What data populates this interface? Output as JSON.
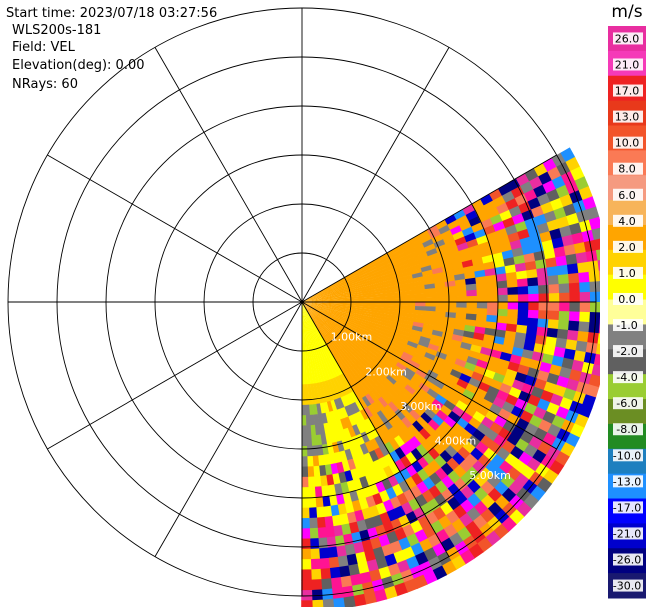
{
  "header": {
    "start_time": "Start time: 2023/07/18 03:27:56",
    "instrument": "WLS200s-181",
    "field": "Field: VEL",
    "elevation": "Elevation(deg): 0.00",
    "nrays": "NRays: 60"
  },
  "chart_data": {
    "type": "ppi",
    "range_ring_labels": [
      "1.00km",
      "2.00km",
      "3.00km",
      "4.00km",
      "5.00km"
    ],
    "range_ring_km": [
      1,
      2,
      3,
      4,
      5
    ],
    "max_ring_km": 6,
    "sector_azimuth_deg": [
      60,
      180
    ],
    "radial_lines_deg": [
      0,
      30,
      60,
      90,
      120,
      150,
      180,
      210,
      240,
      270,
      300,
      330
    ],
    "colorbar": {
      "unit": "m/s",
      "ticks": [
        "26.0",
        "21.0",
        "17.0",
        "13.0",
        "10.0",
        "8.0",
        "6.0",
        "4.0",
        "2.0",
        "1.0",
        "0.0",
        "-1.0",
        "-2.0",
        "-4.0",
        "-6.0",
        "-8.0",
        "-10.0",
        "-13.0",
        "-17.0",
        "-21.0",
        "-26.0",
        "-30.0"
      ],
      "colors": [
        "#e82ea0",
        "#f53ab8",
        "#ee2222",
        "#e8391b",
        "#f2542a",
        "#fa7a55",
        "#f59a80",
        "#f7b45a",
        "#ffa500",
        "#ffd200",
        "#ffff00",
        "#ffff99",
        "#808080",
        "#606060",
        "#9acd32",
        "#6b8e23",
        "#228b22",
        "#1d7fbf",
        "#1e90ff",
        "#0000ff",
        "#0000cd",
        "#000080",
        "#191970"
      ]
    }
  }
}
